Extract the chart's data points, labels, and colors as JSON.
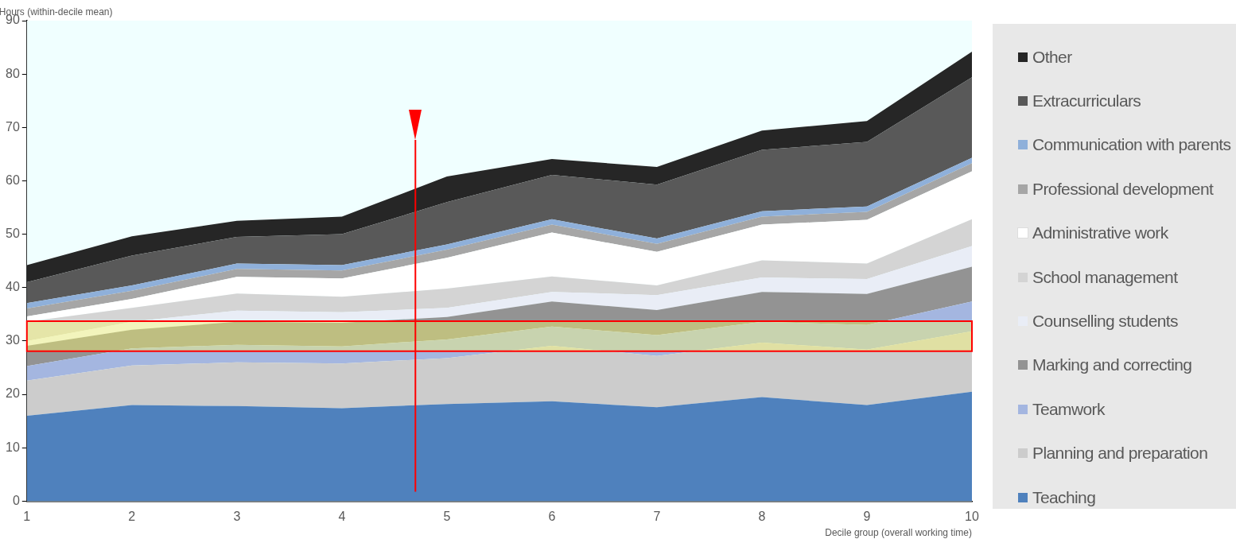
{
  "chart_data": {
    "type": "area",
    "stacked": true,
    "xlabel": "Decile group (overall working time)",
    "ylabel": "Hours (within-decile mean)",
    "x": [
      1,
      2,
      3,
      4,
      5,
      6,
      7,
      8,
      9,
      10
    ],
    "xlim": [
      1,
      10
    ],
    "xticks": [
      1,
      2,
      3,
      4,
      5,
      6,
      7,
      8,
      9,
      10
    ],
    "ylim": [
      0,
      90
    ],
    "yticks": [
      0,
      10,
      20,
      30,
      40,
      50,
      60,
      70,
      80,
      90
    ],
    "legend": "right",
    "series": [
      {
        "name": "Teaching",
        "color": "#4f81bd",
        "values": [
          16.0,
          18.0,
          17.8,
          17.4,
          18.2,
          18.7,
          17.6,
          19.5,
          18.0,
          20.5
        ]
      },
      {
        "name": "Planning and preparation",
        "color": "#cccccc",
        "values": [
          6.6,
          7.4,
          8.2,
          8.4,
          8.6,
          10.4,
          9.6,
          10.2,
          10.4,
          11.3
        ]
      },
      {
        "name": "Teamwork",
        "color": "#a4b6e0",
        "values": [
          2.7,
          3.2,
          3.3,
          3.2,
          3.5,
          3.6,
          3.9,
          3.9,
          4.6,
          5.6
        ]
      },
      {
        "name": "Marking and correcting",
        "color": "#939393",
        "values": [
          3.8,
          3.5,
          4.3,
          4.4,
          4.2,
          4.7,
          4.7,
          5.6,
          5.8,
          6.5
        ]
      },
      {
        "name": "Counselling students",
        "color": "#e9edf6",
        "values": [
          0.9,
          1.5,
          2.1,
          2.0,
          1.7,
          1.8,
          2.8,
          2.7,
          2.8,
          3.9
        ]
      },
      {
        "name": "School management",
        "color": "#d4d4d4",
        "values": [
          3.6,
          2.6,
          3.2,
          2.9,
          3.6,
          2.9,
          1.8,
          3.2,
          2.9,
          5.0
        ]
      },
      {
        "name": "Administrative work",
        "color": "#ffffff",
        "values": [
          1.0,
          1.7,
          3.1,
          3.4,
          5.8,
          8.2,
          6.3,
          6.7,
          8.2,
          9.0
        ]
      },
      {
        "name": "Professional development",
        "color": "#a6a6a6",
        "values": [
          1.5,
          1.5,
          1.5,
          1.5,
          1.5,
          1.5,
          1.5,
          1.5,
          1.5,
          1.5
        ]
      },
      {
        "name": "Communication with parents",
        "color": "#8fb0da",
        "values": [
          1.0,
          1.0,
          1.0,
          1.0,
          1.0,
          1.0,
          1.0,
          1.0,
          1.0,
          1.0
        ]
      },
      {
        "name": "Extracurriculars",
        "color": "#595959",
        "values": [
          3.9,
          5.6,
          5.0,
          5.8,
          7.9,
          8.3,
          10.1,
          11.5,
          12.1,
          15.1
        ]
      },
      {
        "name": "Other",
        "color": "#262626",
        "values": [
          3.2,
          3.6,
          3.0,
          3.3,
          4.8,
          3.0,
          3.3,
          3.6,
          3.9,
          4.8
        ]
      }
    ],
    "bands": [
      {
        "axis": "y",
        "from": 28.1,
        "to": 33.7,
        "color": "#ffff66"
      }
    ],
    "ref_lines": [
      {
        "axis": "x",
        "value": 4.7,
        "color": "#ff0000"
      }
    ]
  }
}
